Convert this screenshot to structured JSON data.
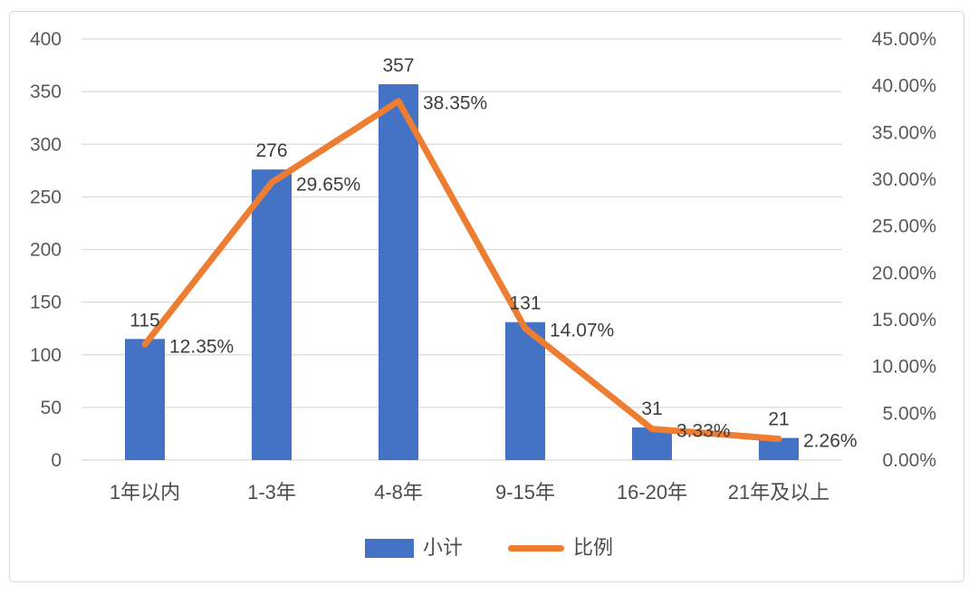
{
  "chart_data": {
    "type": "combo",
    "categories": [
      "1年以内",
      "1-3年",
      "4-8年",
      "9-15年",
      "16-20年",
      "21年及以上"
    ],
    "series": [
      {
        "name": "小计",
        "type": "bar",
        "axis": "left",
        "color": "#4472C4",
        "values": [
          115,
          276,
          357,
          131,
          31,
          21
        ],
        "data_labels": [
          "115",
          "276",
          "357",
          "131",
          "31",
          "21"
        ]
      },
      {
        "name": "比例",
        "type": "line",
        "axis": "right",
        "color": "#ED7D31",
        "values": [
          12.35,
          29.65,
          38.35,
          14.07,
          3.33,
          2.26
        ],
        "data_labels": [
          "12.35%",
          "29.65%",
          "38.35%",
          "14.07%",
          "3.33%",
          "2.26%"
        ]
      }
    ],
    "left_axis": {
      "min": 0,
      "max": 400,
      "step": 50,
      "ticks": [
        "0",
        "50",
        "100",
        "150",
        "200",
        "250",
        "300",
        "350",
        "400"
      ]
    },
    "right_axis": {
      "min": 0,
      "max": 45,
      "step": 5,
      "ticks": [
        "0.00%",
        "5.00%",
        "10.00%",
        "15.00%",
        "20.00%",
        "25.00%",
        "30.00%",
        "35.00%",
        "40.00%",
        "45.00%"
      ]
    },
    "grid": true,
    "legend_position": "bottom",
    "title": "",
    "xlabel": "",
    "ylabel": ""
  },
  "style": {
    "bar_color": "#4472C4",
    "line_color": "#ED7D31",
    "gridline_color": "#d9d9d9",
    "axis_text_color": "#595959",
    "label_text_color": "#3d3d3d"
  }
}
